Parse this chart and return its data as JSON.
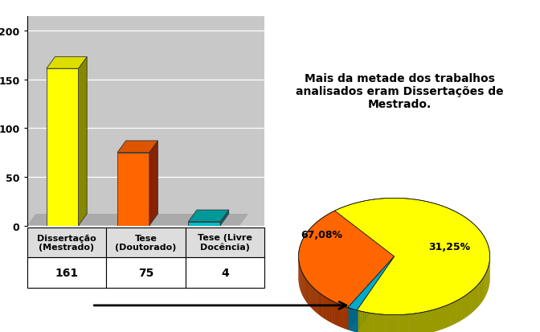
{
  "bar_categories": [
    "Dissertação\n(Mestrado)",
    "Tese\n(Doutorado)",
    "Tese (Livre\nDocência)"
  ],
  "bar_values": [
    161,
    75,
    4
  ],
  "bar_values_labels": [
    "161",
    "75",
    "4"
  ],
  "bar_colors_front": [
    "#ffff00",
    "#ff6600",
    "#00bbcc"
  ],
  "bar_colors_side": [
    "#888800",
    "#882200",
    "#006677"
  ],
  "bar_colors_top": [
    "#dddd00",
    "#dd5500",
    "#009999"
  ],
  "bar_ylim": [
    0,
    200
  ],
  "bar_yticks": [
    0,
    50,
    100,
    150,
    200
  ],
  "bar_bg_color": "#c8c8c8",
  "pie_values": [
    67.08,
    31.25,
    1.67
  ],
  "pie_colors": [
    "#ffff00",
    "#ff6600",
    "#00aacc"
  ],
  "pie_side_colors": [
    "#999900",
    "#993300",
    "#006688"
  ],
  "annotation_text": "Mais da metade dos trabalhos\nanalisados eram Dissertações de\nMestrado.",
  "fig_bg_color": "#ffffff"
}
